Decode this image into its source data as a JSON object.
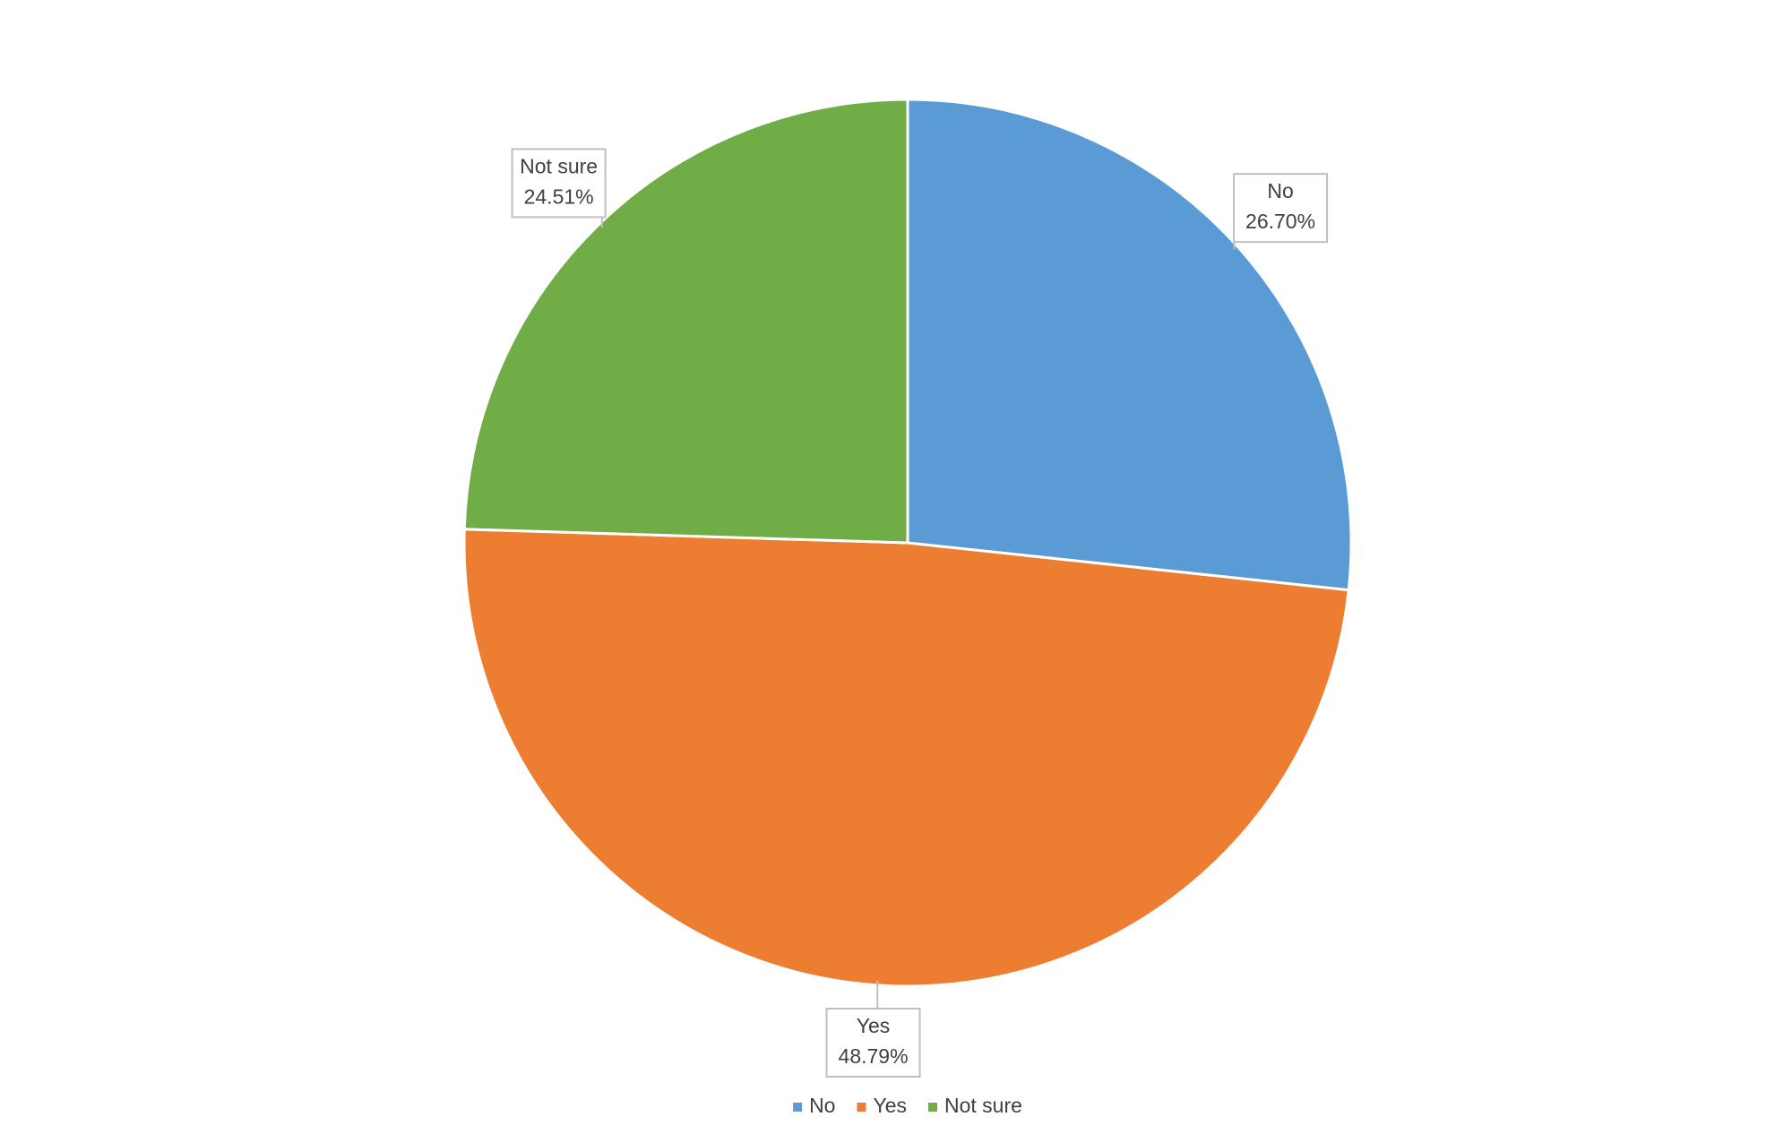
{
  "chart_data": {
    "type": "pie",
    "categories": [
      "No",
      "Yes",
      "Not sure"
    ],
    "values": [
      26.7,
      48.79,
      24.51
    ],
    "value_labels": [
      "26.70%",
      "48.79%",
      "24.51%"
    ],
    "colors": [
      "#5b9bd5",
      "#ed7d31",
      "#70ad47"
    ],
    "legend": "bottom"
  }
}
